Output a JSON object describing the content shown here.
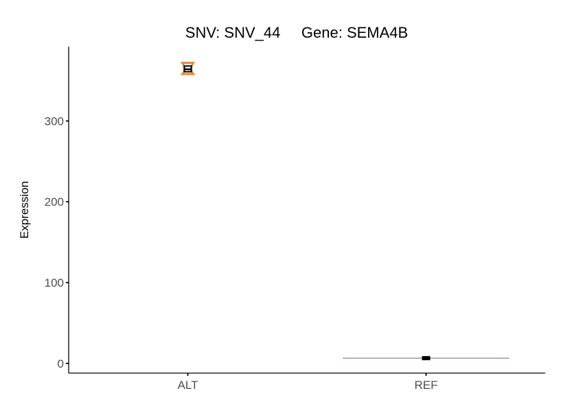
{
  "chart_data": {
    "type": "violin",
    "title": "SNV: SNV_44     Gene: SEMA4B",
    "xlabel": "",
    "ylabel": "Expression",
    "categories": [
      "ALT",
      "REF"
    ],
    "ylim": [
      -12,
      392
    ],
    "yticks": [
      0,
      100,
      200,
      300
    ],
    "grid": false,
    "legend": "none",
    "groups": [
      {
        "category": "ALT",
        "min": 358,
        "q1": 361,
        "median": 364,
        "q3": 368,
        "max": 372,
        "violin_color": "#E8883A"
      },
      {
        "category": "REF",
        "min": 6,
        "q1": 6,
        "median": 6.5,
        "q3": 7,
        "max": 7,
        "violin_color": "#7B6FA8"
      }
    ]
  }
}
